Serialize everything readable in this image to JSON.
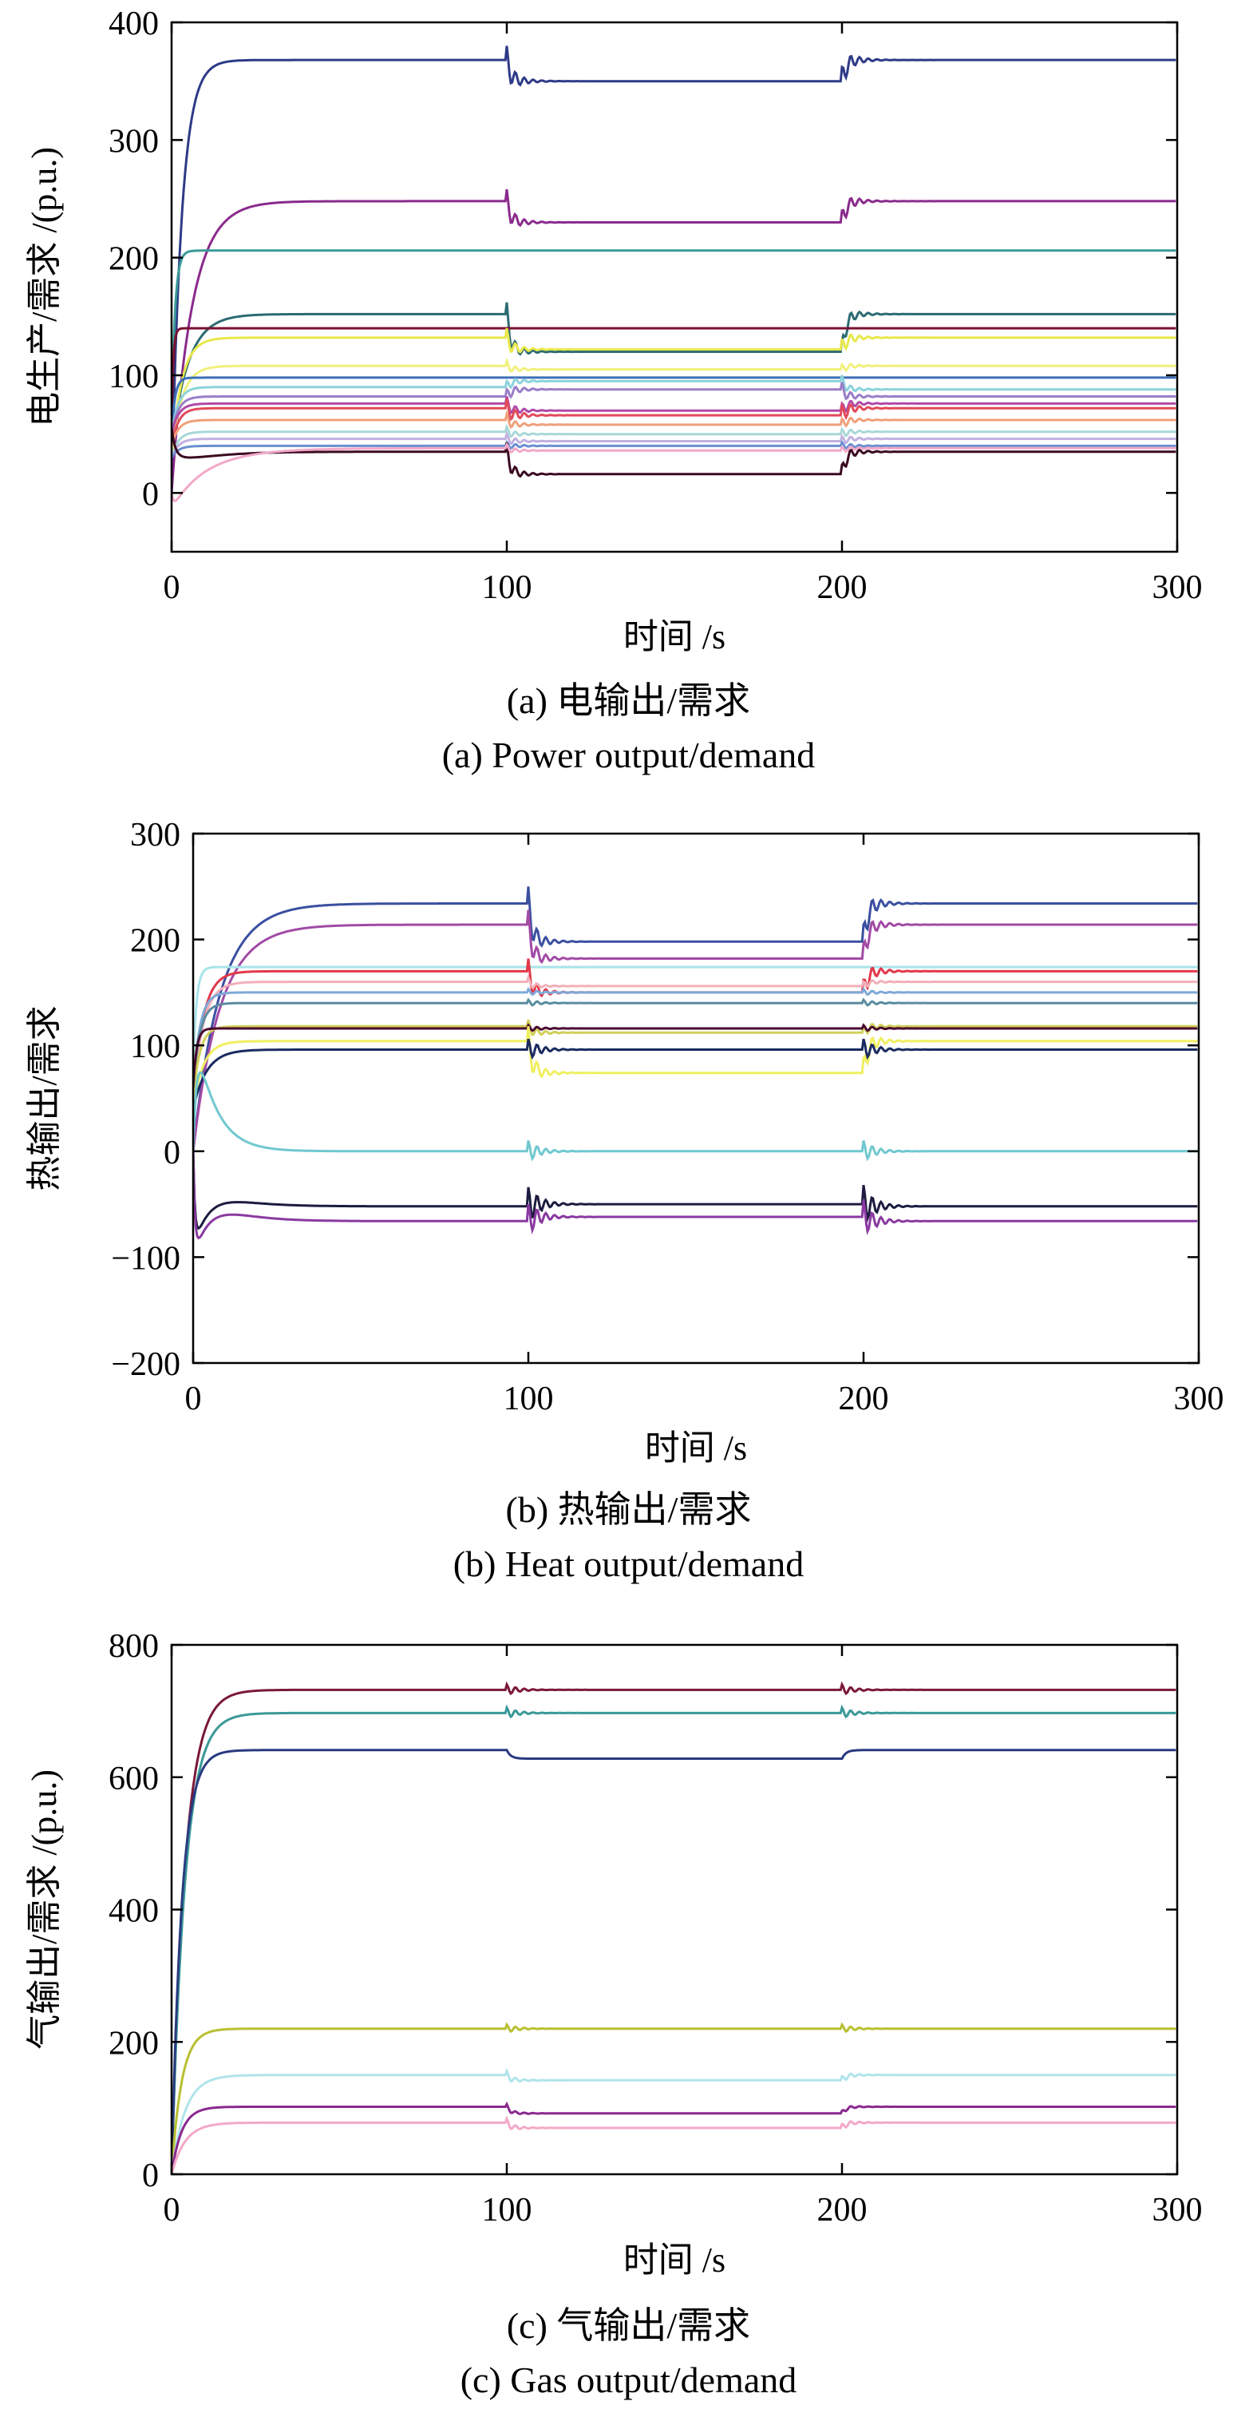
{
  "charts": [
    {
      "type": "line",
      "xlabel": "时间 /s",
      "ylabel": "电生产/需求 /(p.u.)",
      "caption_cn": "(a) 电输出/需求",
      "caption_en": "(a) Power output/demand",
      "xlim": [
        0,
        300
      ],
      "ylim": [
        -50,
        400
      ],
      "xticks": [
        0,
        100,
        200,
        300
      ],
      "yticks": [
        0,
        100,
        200,
        300,
        400
      ],
      "series": [
        {
          "color": "#2e3a87",
          "rise": 3,
          "v1": 368,
          "v2": 350,
          "v3": 368,
          "start": 0,
          "osc": 12
        },
        {
          "color": "#8a2a8c",
          "rise": 6,
          "v1": 248,
          "v2": 230,
          "v3": 248,
          "start": 0,
          "osc": 10
        },
        {
          "color": "#3a9a98",
          "rise": 1,
          "v1": 206,
          "v2": 206,
          "v3": 206,
          "start": 60,
          "osc": 0
        },
        {
          "color": "#2c6b73",
          "rise": 5,
          "v1": 152,
          "v2": 120,
          "v3": 152,
          "start": 40,
          "osc": 10
        },
        {
          "color": "#7a1030",
          "rise": 0.5,
          "v1": 140,
          "v2": 140,
          "v3": 140,
          "start": 60,
          "osc": 0
        },
        {
          "color": "#e8e84a",
          "rise": 3,
          "v1": 132,
          "v2": 122,
          "v3": 132,
          "start": 30,
          "osc": 8
        },
        {
          "color": "#f1f07c",
          "rise": 3,
          "v1": 108,
          "v2": 105,
          "v3": 108,
          "start": 30,
          "osc": 4
        },
        {
          "color": "#3d6fb8",
          "rise": 1,
          "v1": 98,
          "v2": 98,
          "v3": 98,
          "start": 50,
          "osc": 0
        },
        {
          "color": "#8bd3dc",
          "rise": 2,
          "v1": 90,
          "v2": 95,
          "v3": 88,
          "start": 50,
          "osc": 5
        },
        {
          "color": "#9a7ec8",
          "rise": 2,
          "v1": 82,
          "v2": 88,
          "v3": 82,
          "start": 50,
          "osc": 6
        },
        {
          "color": "#b04aa8",
          "rise": 2,
          "v1": 76,
          "v2": 70,
          "v3": 76,
          "start": 50,
          "osc": 6
        },
        {
          "color": "#e24a5a",
          "rise": 2,
          "v1": 72,
          "v2": 66,
          "v3": 72,
          "start": 40,
          "osc": 8
        },
        {
          "color": "#f0a07a",
          "rise": 2,
          "v1": 62,
          "v2": 58,
          "v3": 62,
          "start": 40,
          "osc": 5
        },
        {
          "color": "#a8d8d8",
          "rise": 2,
          "v1": 52,
          "v2": 50,
          "v3": 52,
          "start": 30,
          "osc": 4
        },
        {
          "color": "#c0b0e0",
          "rise": 2,
          "v1": 46,
          "v2": 44,
          "v3": 46,
          "start": 30,
          "osc": 4
        },
        {
          "color": "#6a8fd0",
          "rise": 2,
          "v1": 40,
          "v2": 40,
          "v3": 40,
          "start": 30,
          "osc": 3
        },
        {
          "color": "#3a0a20",
          "rise": 6,
          "v1": 35,
          "v2": 16,
          "v3": 35,
          "start": 55,
          "osc": 8,
          "overshoot": 20
        },
        {
          "color": "#f2a8c8",
          "rise": 12,
          "v1": 38,
          "v2": 36,
          "v3": 38,
          "start": 0,
          "osc": 3,
          "dip": -14
        }
      ]
    },
    {
      "type": "line",
      "xlabel": "时间 /s",
      "ylabel": "热输出/需求",
      "caption_cn": "(b) 热输出/需求",
      "caption_en": "(b) Heat output/demand",
      "xlim": [
        0,
        300
      ],
      "ylim": [
        -200,
        300
      ],
      "xticks": [
        0,
        100,
        200,
        300
      ],
      "yticks": [
        -200,
        -100,
        0,
        100,
        200,
        300
      ],
      "series": [
        {
          "color": "#3a4fa0",
          "rise": 8,
          "v1": 234,
          "v2": 198,
          "v3": 234,
          "start": 0,
          "osc": 16
        },
        {
          "color": "#a24aa6",
          "rise": 8,
          "v1": 214,
          "v2": 182,
          "v3": 214,
          "start": 0,
          "osc": 14
        },
        {
          "color": "#a8e4ea",
          "rise": 1,
          "v1": 174,
          "v2": 174,
          "v3": 174,
          "start": 80,
          "osc": 0
        },
        {
          "color": "#e2384a",
          "rise": 3,
          "v1": 170,
          "v2": 150,
          "v3": 170,
          "start": 50,
          "osc": 12
        },
        {
          "color": "#f2b0b8",
          "rise": 3,
          "v1": 160,
          "v2": 156,
          "v3": 160,
          "start": 50,
          "osc": 4
        },
        {
          "color": "#7ea8d8",
          "rise": 2,
          "v1": 150,
          "v2": 150,
          "v3": 150,
          "start": 60,
          "osc": 3
        },
        {
          "color": "#5a8ca0",
          "rise": 2,
          "v1": 140,
          "v2": 140,
          "v3": 140,
          "start": 60,
          "osc": 3
        },
        {
          "color": "#d0d058",
          "rise": 2,
          "v1": 118,
          "v2": 112,
          "v3": 118,
          "start": 50,
          "osc": 6
        },
        {
          "color": "#4a0a30",
          "rise": 1,
          "v1": 116,
          "v2": 116,
          "v3": 116,
          "start": 60,
          "osc": 3
        },
        {
          "color": "#f0ef60",
          "rise": 3,
          "v1": 104,
          "v2": 74,
          "v3": 104,
          "start": 40,
          "osc": 14
        },
        {
          "color": "#1a2a60",
          "rise": 4,
          "v1": 96,
          "v2": 96,
          "v3": 96,
          "start": 40,
          "osc": 10
        },
        {
          "color": "#70c8d0",
          "rise": 4,
          "v1": 0,
          "v2": 0,
          "v3": 0,
          "start": 0,
          "osc": 10,
          "overshoot": 80
        },
        {
          "color": "#1c1c40",
          "rise": 8,
          "v1": -52,
          "v2": -50,
          "v3": -52,
          "start": 0,
          "osc": 18,
          "dip": -95
        },
        {
          "color": "#8a3aa0",
          "rise": 8,
          "v1": -66,
          "v2": -62,
          "v3": -66,
          "start": 0,
          "osc": 16,
          "dip": -105
        }
      ]
    },
    {
      "type": "line",
      "xlabel": "时间 /s",
      "ylabel": "气输出/需求 /(p.u.)",
      "caption_cn": "(c) 气输出/需求",
      "caption_en": "(c) Gas output/demand",
      "xlim": [
        0,
        300
      ],
      "ylim": [
        0,
        800
      ],
      "xticks": [
        0,
        100,
        200,
        300
      ],
      "yticks": [
        0,
        200,
        400,
        600,
        800
      ],
      "series": [
        {
          "color": "#7a1838",
          "rise": 4,
          "v1": 732,
          "v2": 732,
          "v3": 732,
          "start": 0,
          "osc": 8
        },
        {
          "color": "#3a9898",
          "rise": 4,
          "v1": 697,
          "v2": 697,
          "v3": 697,
          "start": 0,
          "osc": 8
        },
        {
          "color": "#2a3a80",
          "rise": 3,
          "v1": 641,
          "v2": 628,
          "v3": 641,
          "start": 0,
          "osc": 0
        },
        {
          "color": "#b8c030",
          "rise": 3,
          "v1": 220,
          "v2": 220,
          "v3": 220,
          "start": 0,
          "osc": 6
        },
        {
          "color": "#b0e4ea",
          "rise": 4,
          "v1": 150,
          "v2": 142,
          "v3": 150,
          "start": 0,
          "osc": 6
        },
        {
          "color": "#8a2890",
          "rise": 3,
          "v1": 102,
          "v2": 92,
          "v3": 102,
          "start": 0,
          "osc": 4
        },
        {
          "color": "#f2a8c8",
          "rise": 4,
          "v1": 78,
          "v2": 70,
          "v3": 78,
          "start": 0,
          "osc": 6
        }
      ]
    }
  ]
}
